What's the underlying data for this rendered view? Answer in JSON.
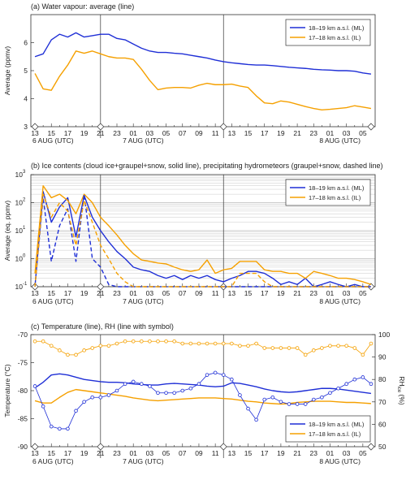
{
  "chart_data": [
    {
      "type": "line",
      "title": "(a) Water vapour: average (line)",
      "ylabel": "Average (ppmv)",
      "ylim": [
        3,
        7
      ],
      "yticks": [
        "3",
        "4",
        "5",
        "6"
      ],
      "ytick_values": [
        3,
        4,
        5,
        6
      ],
      "x": [
        13,
        14,
        15,
        16,
        17,
        18,
        19,
        20,
        21,
        22,
        23,
        24,
        25,
        26,
        27,
        28,
        29,
        30,
        31,
        32,
        33,
        34,
        35,
        36,
        37,
        38,
        39,
        40,
        41,
        42,
        43,
        44,
        45,
        46,
        47,
        48,
        49,
        50,
        51,
        52,
        53,
        54
      ],
      "series": [
        {
          "name": "18–19 km a.s.l. (ML)",
          "color": "#1f2fd6",
          "values": [
            5.5,
            5.6,
            6.1,
            6.3,
            6.2,
            6.35,
            6.2,
            6.25,
            6.3,
            6.3,
            6.15,
            6.1,
            5.95,
            5.8,
            5.7,
            5.65,
            5.65,
            5.62,
            5.6,
            5.55,
            5.5,
            5.45,
            5.38,
            5.32,
            5.28,
            5.25,
            5.22,
            5.2,
            5.2,
            5.18,
            5.15,
            5.12,
            5.1,
            5.08,
            5.05,
            5.03,
            5.02,
            5.0,
            5.0,
            4.98,
            4.92,
            4.88
          ]
        },
        {
          "name": "17–18 km a.s.l. (IL)",
          "color": "#f5a000",
          "values": [
            4.9,
            4.35,
            4.3,
            4.8,
            5.2,
            5.7,
            5.62,
            5.7,
            5.6,
            5.5,
            5.45,
            5.45,
            5.4,
            5.05,
            4.65,
            4.32,
            4.38,
            4.4,
            4.4,
            4.38,
            4.48,
            4.55,
            4.5,
            4.5,
            4.52,
            4.45,
            4.4,
            4.1,
            3.85,
            3.82,
            3.92,
            3.88,
            3.8,
            3.72,
            3.65,
            3.6,
            3.62,
            3.65,
            3.68,
            3.75,
            3.7,
            3.65
          ]
        }
      ],
      "legend": "top-right"
    },
    {
      "type": "line",
      "title": "(b) Ice contents (cloud ice+graupel+snow, solid line), precipitating hydrometeors (graupel+snow, dashed line)",
      "ylabel": "Average (eq. ppmv)",
      "yscale": "log",
      "ylim": [
        0.1,
        1000
      ],
      "yticks": [
        "10",
        "10",
        "10",
        "10",
        "10"
      ],
      "ytick_exponents": [
        "-1",
        "0",
        "1",
        "2",
        "3"
      ],
      "ytick_values": [
        0.1,
        1,
        10,
        100,
        1000
      ],
      "x": [
        13,
        14,
        15,
        16,
        17,
        18,
        19,
        20,
        21,
        22,
        23,
        24,
        25,
        26,
        27,
        28,
        29,
        30,
        31,
        32,
        33,
        34,
        35,
        36,
        37,
        38,
        39,
        40,
        41,
        42,
        43,
        44,
        45,
        46,
        47,
        48,
        49,
        50,
        51,
        52,
        53,
        54
      ],
      "series": [
        {
          "name": "18–19 km a.s.l. (ML)",
          "color": "#1f2fd6",
          "style": "solid",
          "values": [
            0.1,
            250,
            20,
            70,
            150,
            6,
            180,
            30,
            10,
            4,
            1.8,
            1,
            0.5,
            0.4,
            0.35,
            0.25,
            0.2,
            0.25,
            0.18,
            0.25,
            0.2,
            0.25,
            0.18,
            0.15,
            0.2,
            0.25,
            0.35,
            0.35,
            0.3,
            0.2,
            0.12,
            0.15,
            0.12,
            0.2,
            0.1,
            0.12,
            0.15,
            0.12,
            0.1,
            0.12,
            0.1,
            0.1
          ]
        },
        {
          "name": "17–18 km a.s.l. (IL)",
          "color": "#f5a000",
          "style": "solid",
          "values": [
            0.3,
            400,
            150,
            200,
            120,
            40,
            200,
            100,
            30,
            15,
            7,
            3,
            1.5,
            0.9,
            0.8,
            0.7,
            0.65,
            0.5,
            0.4,
            0.35,
            0.4,
            0.9,
            0.3,
            0.4,
            0.45,
            0.8,
            0.8,
            0.8,
            0.4,
            0.35,
            0.35,
            0.3,
            0.3,
            0.2,
            0.35,
            0.3,
            0.25,
            0.2,
            0.2,
            0.18,
            0.15,
            0.12
          ]
        },
        {
          "name": "",
          "color": "#1f2fd6",
          "style": "dashed",
          "values": [
            0.1,
            150,
            0.8,
            15,
            60,
            0.8,
            200,
            1,
            0.5,
            0.12,
            0.1,
            0.1,
            0.1,
            0.1,
            0.1,
            0.1,
            0.1,
            0.1,
            0.1,
            0.1,
            0.1,
            0.1,
            0.1,
            0.1,
            0.1,
            0.1,
            0.1,
            0.1,
            0.1,
            0.1,
            0.1,
            0.1,
            0.1,
            0.1,
            0.1,
            0.1,
            0.1,
            0.1,
            0.1,
            0.1,
            0.1,
            0.1
          ]
        },
        {
          "name": "",
          "color": "#f5a000",
          "style": "dashed",
          "values": [
            0.1,
            200,
            30,
            100,
            50,
            3,
            120,
            20,
            3,
            1,
            0.3,
            0.15,
            0.1,
            0.1,
            0.1,
            0.1,
            0.1,
            0.1,
            0.1,
            0.1,
            0.1,
            0.1,
            0.1,
            0.1,
            0.1,
            0.3,
            0.3,
            0.3,
            0.15,
            0.1,
            0.1,
            0.1,
            0.1,
            0.1,
            0.1,
            0.1,
            0.1,
            0.1,
            0.1,
            0.1,
            0.1,
            0.1
          ]
        }
      ],
      "legend": "top-right"
    },
    {
      "type": "line",
      "title": "(c) Temperature (line), RH (line with symbol)",
      "ylabel": "Temperature (°C)",
      "ylim": [
        -90,
        -70
      ],
      "yticks": [
        "-90",
        "-85",
        "-80",
        "-75",
        "-70"
      ],
      "ytick_values": [
        -90,
        -85,
        -80,
        -75,
        -70
      ],
      "y2label_main": "RH",
      "y2label_sub": "ice",
      "y2label_unit": " (%)",
      "y2lim": [
        50,
        100
      ],
      "y2ticks": [
        "50",
        "60",
        "70",
        "80",
        "90",
        "100"
      ],
      "y2tick_values": [
        50,
        60,
        70,
        80,
        90,
        100
      ],
      "x": [
        13,
        14,
        15,
        16,
        17,
        18,
        19,
        20,
        21,
        22,
        23,
        24,
        25,
        26,
        27,
        28,
        29,
        30,
        31,
        32,
        33,
        34,
        35,
        36,
        37,
        38,
        39,
        40,
        41,
        42,
        43,
        44,
        45,
        46,
        47,
        48,
        49,
        50,
        51,
        52,
        53,
        54
      ],
      "series": [
        {
          "name": "18–19 km a.s.l. (ML)",
          "color": "#1f2fd6",
          "axis": "left",
          "marker": "none",
          "values": [
            -79.5,
            -78.5,
            -77.2,
            -77,
            -77.2,
            -77.6,
            -78,
            -78.2,
            -78.4,
            -78.5,
            -78.5,
            -78.6,
            -78.8,
            -78.9,
            -79,
            -79,
            -78.8,
            -78.7,
            -78.8,
            -78.9,
            -79,
            -79.2,
            -79.3,
            -79.2,
            -78.6,
            -78.7,
            -79,
            -79.3,
            -79.7,
            -80,
            -80.2,
            -80.3,
            -80.2,
            -80,
            -79.8,
            -79.6,
            -79.6,
            -79.7,
            -79.9,
            -80.1,
            -80.3,
            -80.5
          ]
        },
        {
          "name": "17–18 km a.s.l. (IL)",
          "color": "#f5a000",
          "axis": "left",
          "marker": "none",
          "values": [
            -81.8,
            -82.2,
            -82.2,
            -81.2,
            -80.3,
            -79.8,
            -80,
            -80.2,
            -80.4,
            -80.6,
            -80.8,
            -81,
            -81.3,
            -81.5,
            -81.7,
            -81.8,
            -81.7,
            -81.6,
            -81.5,
            -81.4,
            -81.3,
            -81.3,
            -81.3,
            -81.4,
            -81.5,
            -81.7,
            -81.9,
            -82,
            -82.2,
            -82.3,
            -82.4,
            -82.3,
            -82.1,
            -82,
            -81.9,
            -81.9,
            -81.9,
            -82,
            -82.1,
            -82.1,
            -82.2,
            -82.3
          ]
        },
        {
          "name": "",
          "color": "#1f2fd6",
          "axis": "right",
          "marker": "circle",
          "values": [
            77,
            68,
            59,
            58,
            58,
            66,
            70,
            72,
            72,
            73,
            75,
            78,
            79,
            78,
            77,
            74,
            74,
            74,
            75,
            76,
            78,
            82,
            83,
            82,
            80,
            73,
            67,
            62,
            71,
            72,
            70,
            69,
            69,
            69,
            71,
            72,
            74,
            76,
            78,
            80,
            81,
            78
          ]
        },
        {
          "name": "",
          "color": "#f5a000",
          "axis": "right",
          "marker": "circle",
          "values": [
            97,
            97,
            95,
            93,
            91,
            91,
            93,
            94,
            95,
            95,
            96,
            97,
            97,
            97,
            97,
            97,
            97,
            97,
            96,
            96,
            96,
            96,
            96,
            96,
            96,
            95,
            95,
            96,
            94,
            94,
            94,
            94,
            94,
            91,
            93,
            94,
            95,
            95,
            95,
            94,
            91,
            96
          ]
        }
      ],
      "legend": "bottom-right"
    }
  ],
  "x_axis": {
    "range": [
      12.5,
      54.5
    ],
    "tick_labels": [
      "13",
      "15",
      "17",
      "19",
      "21",
      "23",
      "01",
      "03",
      "05",
      "07",
      "09",
      "11",
      "13",
      "15",
      "17",
      "19",
      "21",
      "23",
      "01",
      "03",
      "05"
    ],
    "date_labels": [
      {
        "text": "6 AUG (UTC)",
        "at": 13
      },
      {
        "text": "7 AUG (UTC)",
        "at": 24
      },
      {
        "text": "8 AUG (UTC)",
        "at": 48
      }
    ],
    "vertical_lines": [
      21,
      36
    ]
  }
}
